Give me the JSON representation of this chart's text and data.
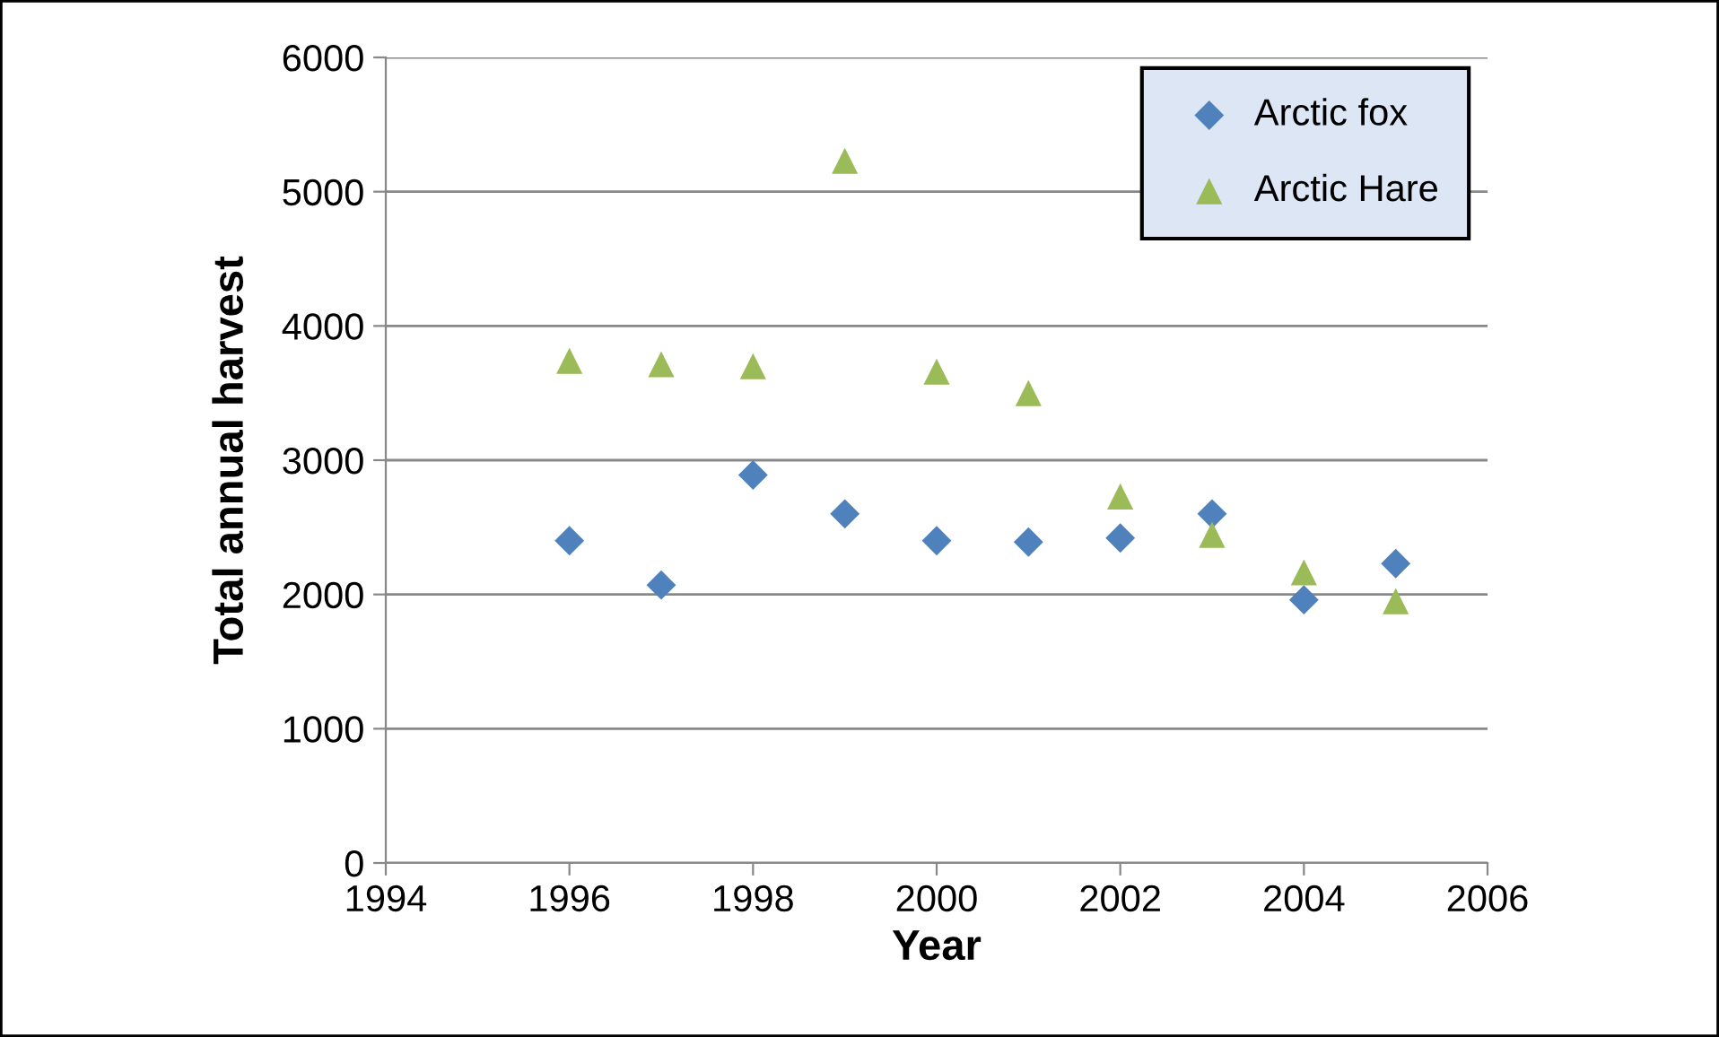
{
  "chart_data": {
    "type": "scatter",
    "xlabel": "Year",
    "ylabel": "Total annual harvest",
    "xlim": [
      1994,
      2006
    ],
    "xticks": [
      1994,
      1996,
      1998,
      2000,
      2002,
      2004,
      2006
    ],
    "ylim": [
      0,
      6000
    ],
    "yticks": [
      0,
      1000,
      2000,
      3000,
      4000,
      5000,
      6000
    ],
    "grid": "y",
    "legend": "top right",
    "series": [
      {
        "name": "Arctic fox",
        "color": "#4f81bd",
        "marker": "diamond",
        "x": [
          1996,
          1997,
          1998,
          1999,
          2000,
          2001,
          2002,
          2003,
          2004,
          2005
        ],
        "values": [
          2400,
          2070,
          2890,
          2600,
          2400,
          2390,
          2420,
          2600,
          1960,
          2230
        ]
      },
      {
        "name": "Arctic Hare",
        "color": "#9bbb59",
        "marker": "triangle",
        "x": [
          1996,
          1997,
          1998,
          1999,
          2000,
          2001,
          2002,
          2003,
          2004,
          2005
        ],
        "values": [
          3740,
          3715,
          3700,
          5230,
          3660,
          3500,
          2730,
          2445,
          2165,
          1950
        ]
      }
    ]
  }
}
